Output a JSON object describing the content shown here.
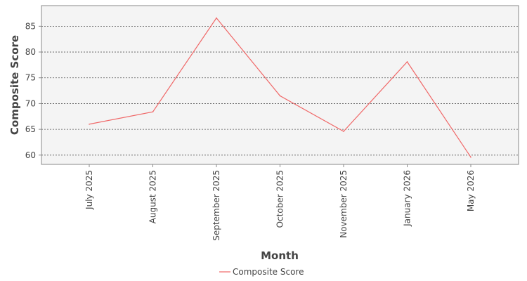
{
  "chart_data": {
    "type": "line",
    "title": "",
    "xlabel": "Month",
    "ylabel": "Composite Score",
    "categories": [
      "July 2025",
      "August 2025",
      "September 2025",
      "October 2025",
      "November 2025",
      "January 2026",
      "May 2026"
    ],
    "series": [
      {
        "name": "Composite Score",
        "values": [
          66.0,
          68.4,
          86.6,
          71.5,
          64.6,
          78.1,
          59.6
        ],
        "color": "#f06767"
      }
    ],
    "ylim": [
      58.2,
      89.0
    ],
    "yticks": [
      60,
      65,
      70,
      75,
      80,
      85
    ],
    "grid": true,
    "legend_position": "bottom-center",
    "plot_background": "#f4f4f4"
  }
}
